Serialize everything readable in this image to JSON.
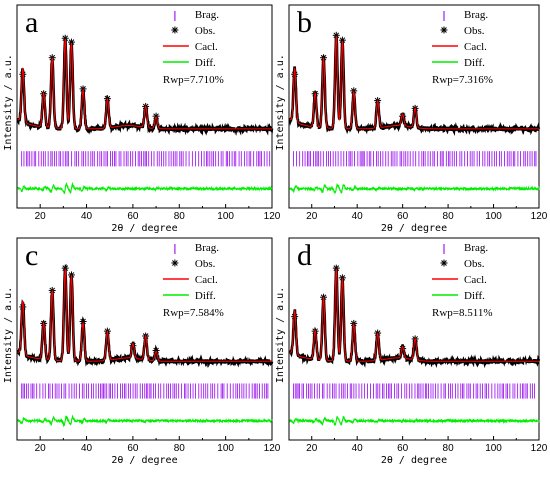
{
  "colors": {
    "bragg": "#a020f0",
    "obs": "#000000",
    "calc": "#ff0000",
    "diff": "#00ee00",
    "frame": "#000000"
  },
  "chart_data": [
    {
      "type": "line",
      "panel": "a",
      "xlabel": "2θ / degree",
      "ylabel": "Intensity / a.u.",
      "xlim": [
        10,
        120
      ],
      "x_ticks": [
        20,
        40,
        60,
        80,
        100,
        120
      ],
      "legend": [
        "Brag.",
        "Obs.",
        "Cacl.",
        "Diff."
      ],
      "legend_position": "top-right",
      "annotation": "Rwp=7.710%",
      "peaks": [
        [
          12.5,
          0.55
        ],
        [
          21.5,
          0.35
        ],
        [
          25.2,
          0.72
        ],
        [
          30.8,
          0.92
        ],
        [
          33.5,
          0.88
        ],
        [
          38.5,
          0.4
        ],
        [
          49.0,
          0.3
        ],
        [
          65.5,
          0.22
        ],
        [
          70.0,
          0.12
        ]
      ]
    },
    {
      "type": "line",
      "panel": "b",
      "xlabel": "2θ / degree",
      "ylabel": "Intensity / a.u.",
      "xlim": [
        10,
        120
      ],
      "x_ticks": [
        20,
        40,
        60,
        80,
        100,
        120
      ],
      "legend": [
        "Brag.",
        "Obs.",
        "Cacl.",
        "Diff."
      ],
      "legend_position": "top-right",
      "annotation": "Rwp=7.316%",
      "peaks": [
        [
          12.5,
          0.55
        ],
        [
          21.5,
          0.35
        ],
        [
          25.2,
          0.72
        ],
        [
          30.8,
          0.95
        ],
        [
          33.5,
          0.9
        ],
        [
          38.5,
          0.38
        ],
        [
          49.0,
          0.28
        ],
        [
          60.0,
          0.12
        ],
        [
          65.5,
          0.2
        ]
      ]
    },
    {
      "type": "line",
      "panel": "c",
      "xlabel": "2θ / degree",
      "ylabel": "Intensity / a.u.",
      "xlim": [
        10,
        120
      ],
      "x_ticks": [
        20,
        40,
        60,
        80,
        100,
        120
      ],
      "legend": [
        "Brag.",
        "Obs.",
        "Cacl.",
        "Diff."
      ],
      "legend_position": "top-right",
      "annotation": "Rwp=7.584%",
      "peaks": [
        [
          12.5,
          0.55
        ],
        [
          21.5,
          0.38
        ],
        [
          25.2,
          0.72
        ],
        [
          30.8,
          0.95
        ],
        [
          33.5,
          0.88
        ],
        [
          38.5,
          0.4
        ],
        [
          49.0,
          0.3
        ],
        [
          60.0,
          0.15
        ],
        [
          65.5,
          0.25
        ],
        [
          70.0,
          0.1
        ]
      ]
    },
    {
      "type": "line",
      "panel": "d",
      "xlabel": "2θ / degree",
      "ylabel": "Intensity / a.u.",
      "xlim": [
        10,
        120
      ],
      "x_ticks": [
        20,
        40,
        60,
        80,
        100,
        120
      ],
      "legend": [
        "Brag.",
        "Obs.",
        "Cacl.",
        "Diff."
      ],
      "legend_position": "top-right",
      "annotation": "Rwp=8.511%",
      "peaks": [
        [
          12.5,
          0.45
        ],
        [
          21.5,
          0.3
        ],
        [
          25.2,
          0.65
        ],
        [
          30.8,
          0.95
        ],
        [
          33.5,
          0.85
        ],
        [
          38.5,
          0.38
        ],
        [
          49.0,
          0.28
        ],
        [
          60.0,
          0.12
        ],
        [
          65.5,
          0.22
        ]
      ]
    }
  ]
}
